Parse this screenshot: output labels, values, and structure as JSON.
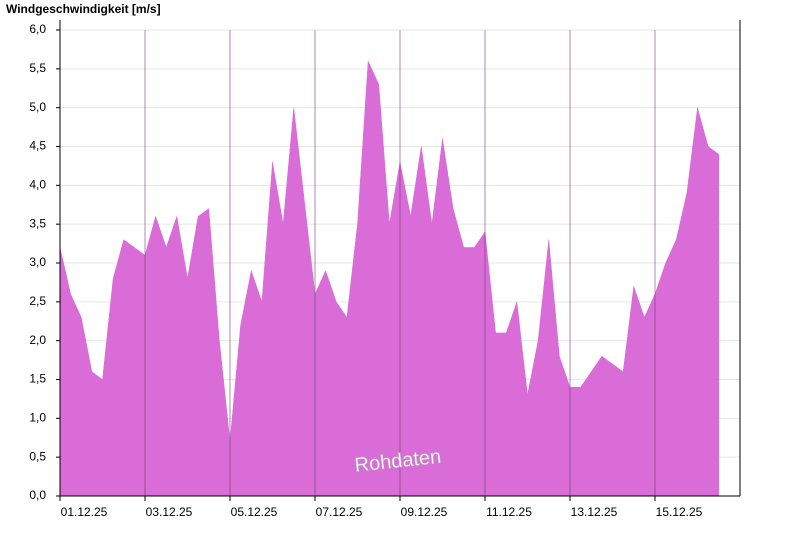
{
  "chart_data": {
    "type": "area",
    "title": "Windgeschwindigkeit [m/s]",
    "annotation": "Rohdaten",
    "color": "#d96cd6",
    "grid": true,
    "x": [
      1,
      1.25,
      1.5,
      1.75,
      2,
      2.25,
      2.5,
      2.75,
      3,
      3.25,
      3.5,
      3.75,
      4,
      4.25,
      4.5,
      4.75,
      5,
      5.25,
      5.5,
      5.75,
      6,
      6.25,
      6.5,
      6.75,
      7,
      7.25,
      7.5,
      7.75,
      8,
      8.25,
      8.5,
      8.75,
      9,
      9.25,
      9.5,
      9.75,
      10,
      10.25,
      10.5,
      10.75,
      11,
      11.25,
      11.5,
      11.75,
      12,
      12.25,
      12.5,
      12.75,
      13,
      13.25,
      13.5,
      13.75,
      14,
      14.25,
      14.5,
      14.75,
      15,
      15.25,
      15.5,
      15.75,
      16,
      16.25,
      16.5
    ],
    "values": [
      3.2,
      2.6,
      2.3,
      1.6,
      1.5,
      2.8,
      3.3,
      3.2,
      3.1,
      3.6,
      3.2,
      3.6,
      2.8,
      3.6,
      3.7,
      2.0,
      0.7,
      2.2,
      2.9,
      2.5,
      4.3,
      3.5,
      5.0,
      3.8,
      2.6,
      2.9,
      2.5,
      2.3,
      3.5,
      5.6,
      5.3,
      3.5,
      4.3,
      3.6,
      4.5,
      3.5,
      4.6,
      3.7,
      3.2,
      3.2,
      3.4,
      2.1,
      2.1,
      2.5,
      1.3,
      2.0,
      3.3,
      1.8,
      1.4,
      1.4,
      1.6,
      1.8,
      1.7,
      1.6,
      2.7,
      2.3,
      2.6,
      3.0,
      3.3,
      3.9,
      5.0,
      4.5,
      4.4
    ],
    "xlim": [
      1,
      17
    ],
    "xticks": [
      {
        "value": 1,
        "label": "01.12.25"
      },
      {
        "value": 3,
        "label": "03.12.25"
      },
      {
        "value": 5,
        "label": "05.12.25"
      },
      {
        "value": 7,
        "label": "07.12.25"
      },
      {
        "value": 9,
        "label": "09.12.25"
      },
      {
        "value": 11,
        "label": "11.12.25"
      },
      {
        "value": 13,
        "label": "13.12.25"
      },
      {
        "value": 15,
        "label": "15.12.25"
      }
    ],
    "ylim": [
      0,
      6
    ],
    "yticks": [
      {
        "value": 0,
        "label": "0,0"
      },
      {
        "value": 0.5,
        "label": "0,5"
      },
      {
        "value": 1,
        "label": "1,0"
      },
      {
        "value": 1.5,
        "label": "1,5"
      },
      {
        "value": 2,
        "label": "2,0"
      },
      {
        "value": 2.5,
        "label": "2,5"
      },
      {
        "value": 3,
        "label": "3,0"
      },
      {
        "value": 3.5,
        "label": "3,5"
      },
      {
        "value": 4,
        "label": "4,0"
      },
      {
        "value": 4.5,
        "label": "4,5"
      },
      {
        "value": 5,
        "label": "5,0"
      },
      {
        "value": 5.5,
        "label": "5,5"
      },
      {
        "value": 6,
        "label": "6,0"
      }
    ]
  }
}
